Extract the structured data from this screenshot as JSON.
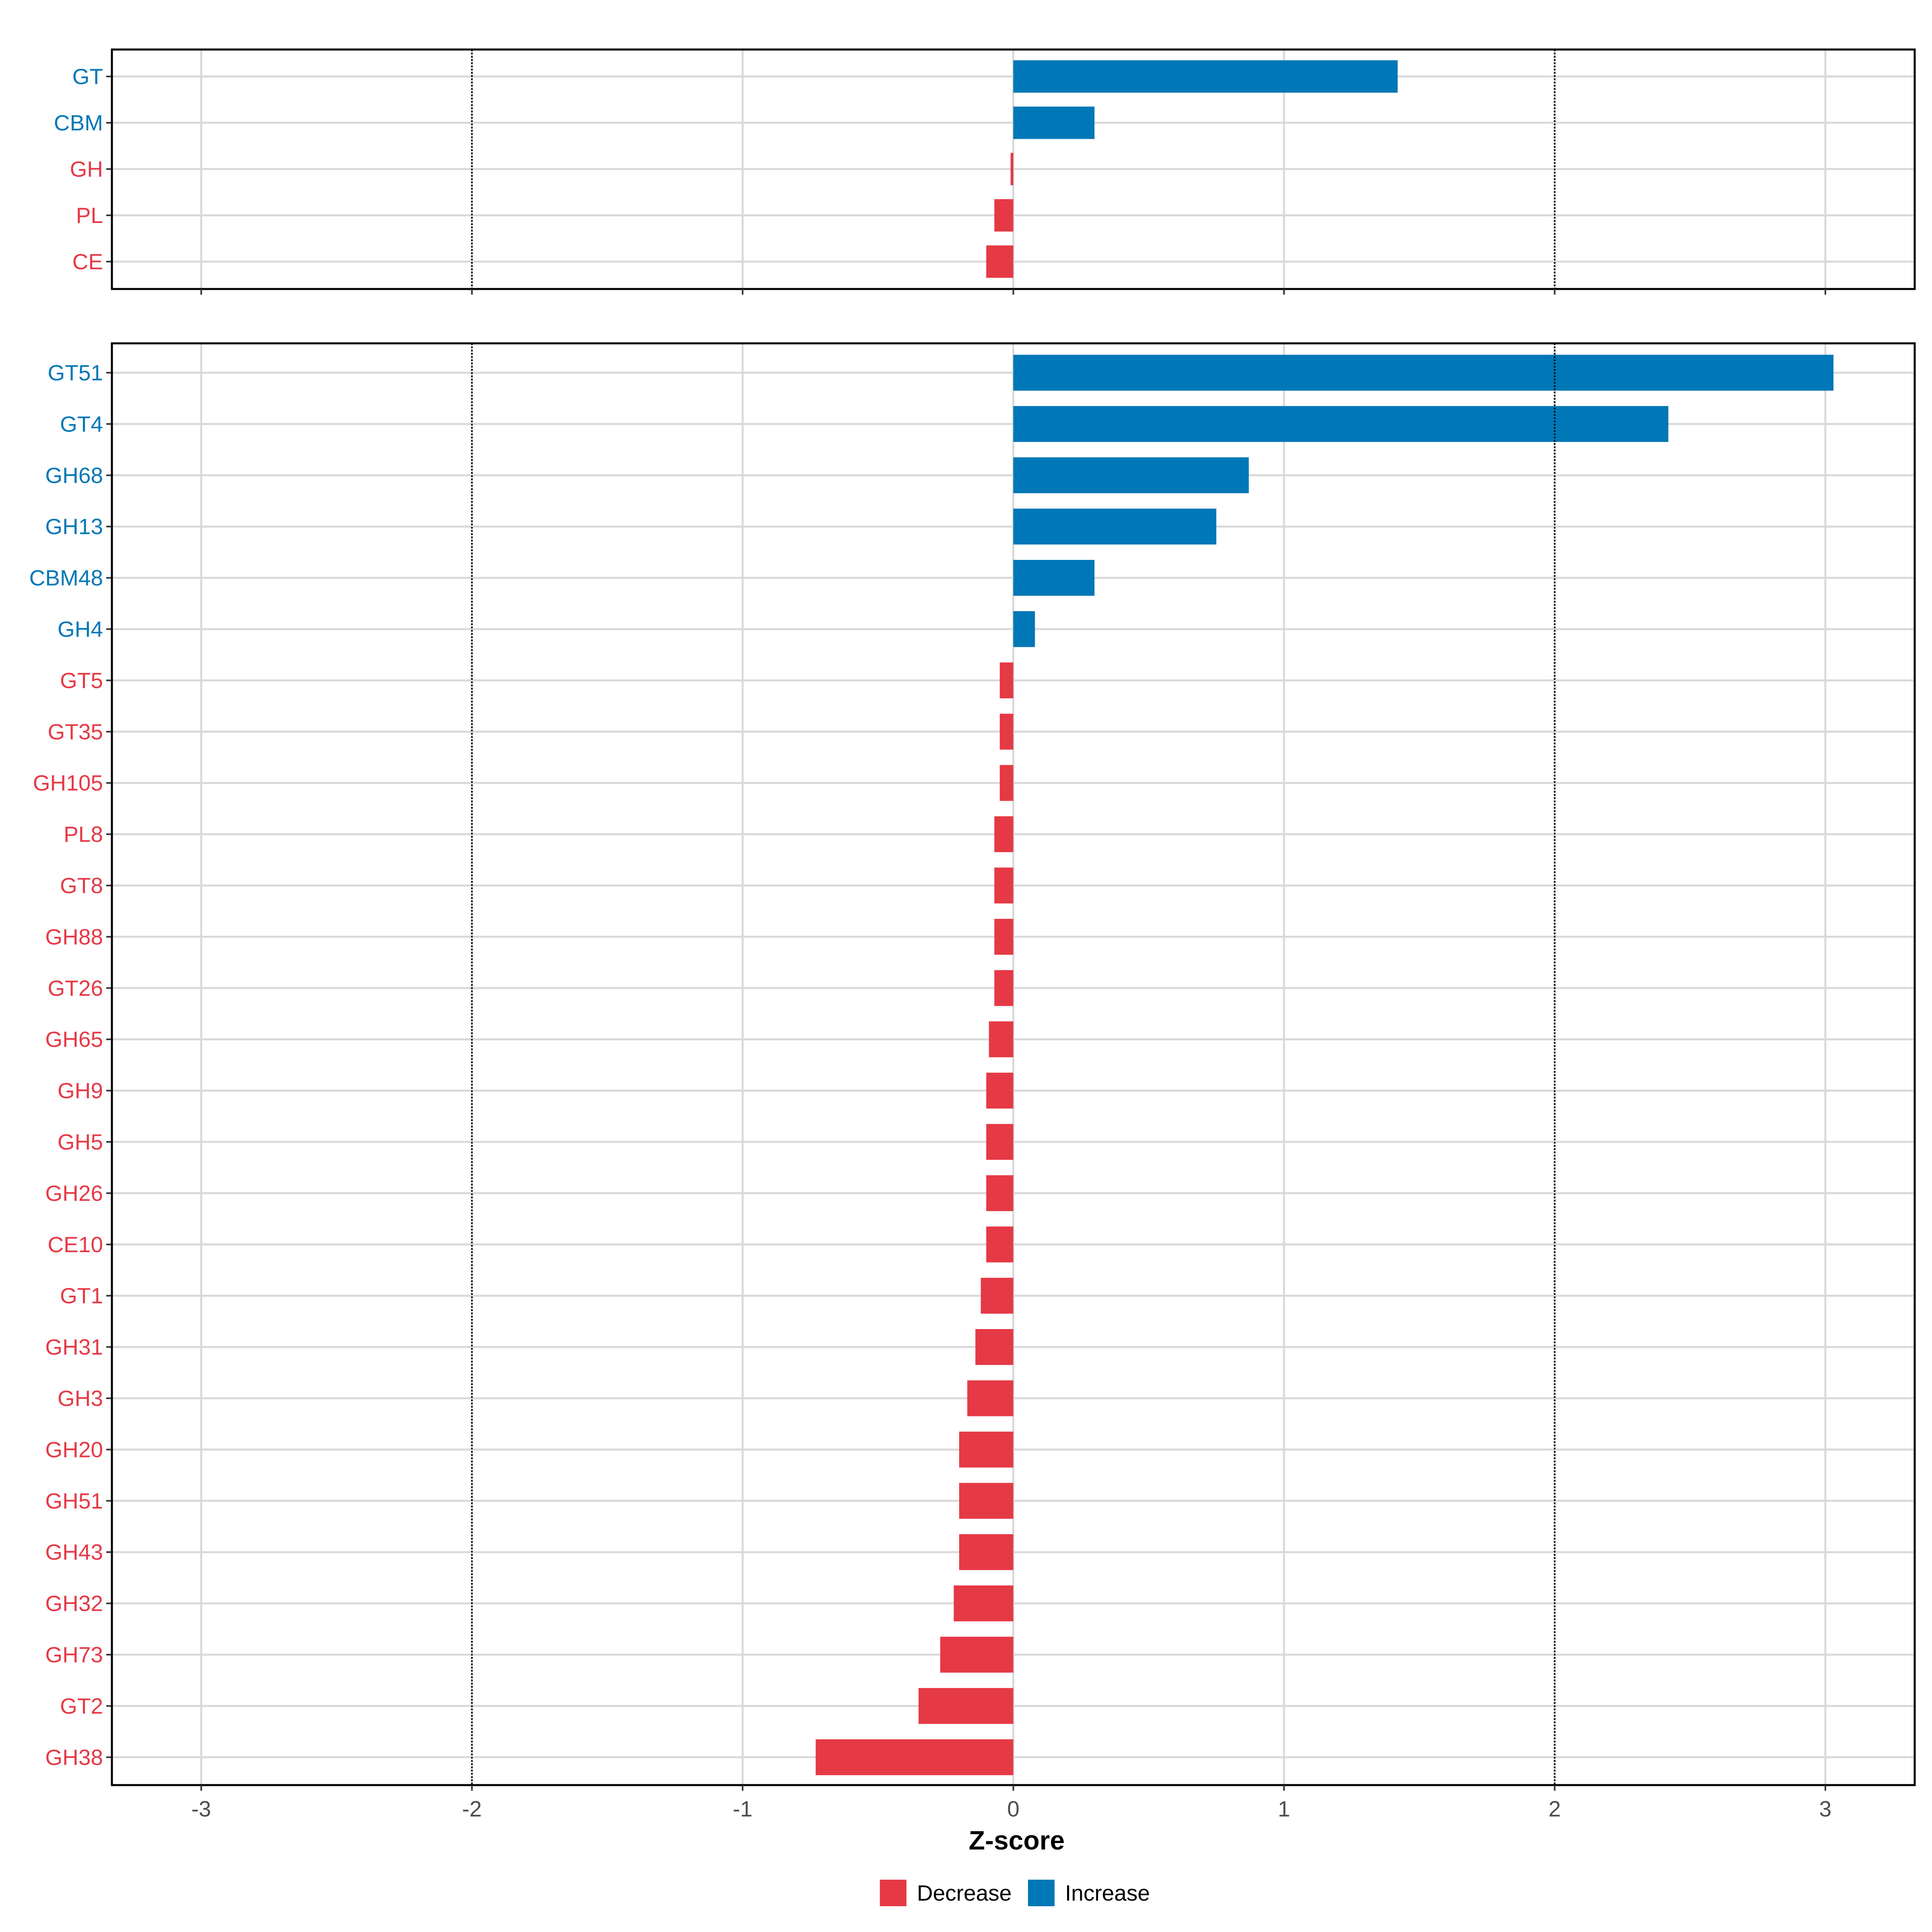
{
  "chart_data": [
    {
      "type": "bar",
      "orientation": "horizontal",
      "panel": "top",
      "categories": [
        "GT",
        "CBM",
        "GH",
        "PL",
        "CE"
      ],
      "values": [
        1.42,
        0.3,
        -0.01,
        -0.07,
        -0.1
      ],
      "xlim": [
        -3.33,
        3.33
      ],
      "grid": true,
      "reference_lines": [
        -2,
        2
      ]
    },
    {
      "type": "bar",
      "orientation": "horizontal",
      "panel": "bottom",
      "categories": [
        "GT51",
        "GT4",
        "GH68",
        "GH13",
        "CBM48",
        "GH4",
        "GT5",
        "GT35",
        "GH105",
        "PL8",
        "GT8",
        "GH88",
        "GT26",
        "GH65",
        "GH9",
        "GH5",
        "GH26",
        "CE10",
        "GT1",
        "GH31",
        "GH3",
        "GH20",
        "GH51",
        "GH43",
        "GH32",
        "GH73",
        "GT2",
        "GH38"
      ],
      "values": [
        3.03,
        2.42,
        0.87,
        0.75,
        0.3,
        0.08,
        -0.05,
        -0.05,
        -0.05,
        -0.07,
        -0.07,
        -0.07,
        -0.07,
        -0.09,
        -0.1,
        -0.1,
        -0.1,
        -0.1,
        -0.12,
        -0.14,
        -0.17,
        -0.2,
        -0.2,
        -0.2,
        -0.22,
        -0.27,
        -0.35,
        -0.73
      ],
      "xlim": [
        -3.33,
        3.33
      ],
      "grid": true,
      "reference_lines": [
        -2,
        2
      ],
      "xticks": [
        -3,
        -2,
        -1,
        0,
        1,
        2,
        3
      ],
      "xtick_labels": [
        "-3",
        "-2",
        "-1",
        "0",
        "1",
        "2",
        "3"
      ],
      "xlabel": "Z-score"
    }
  ],
  "legend": {
    "position": "bottom",
    "entries": [
      {
        "label": "Decrease",
        "color": "#E63946"
      },
      {
        "label": "Increase",
        "color": "#0077B6"
      }
    ]
  },
  "colors": {
    "increase": "#0077B6",
    "decrease": "#E63946"
  }
}
